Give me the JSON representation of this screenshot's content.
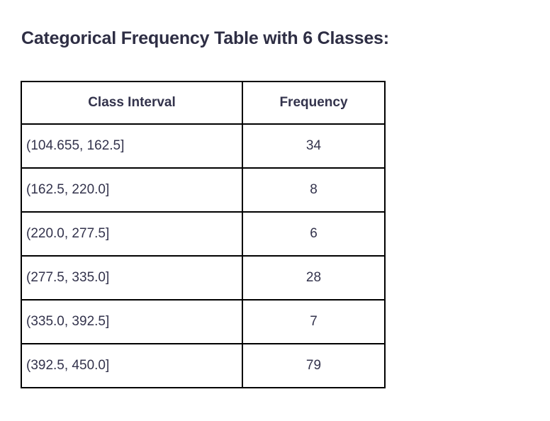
{
  "page": {
    "title": "Categorical Frequency Table with 6 Classes:"
  },
  "table": {
    "columns": [
      "Class Interval",
      "Frequency"
    ],
    "rows": [
      {
        "interval": "(104.655, 162.5]",
        "frequency": "34"
      },
      {
        "interval": "(162.5, 220.0]",
        "frequency": "8"
      },
      {
        "interval": "(220.0, 277.5]",
        "frequency": "6"
      },
      {
        "interval": "(277.5, 335.0]",
        "frequency": "28"
      },
      {
        "interval": "(335.0, 392.5]",
        "frequency": "7"
      },
      {
        "interval": "(392.5, 450.0]",
        "frequency": "79"
      }
    ]
  },
  "chart_data": {
    "type": "table",
    "title": "Categorical Frequency Table with 6 Classes:",
    "columns": [
      "Class Interval",
      "Frequency"
    ],
    "class_intervals": [
      "(104.655, 162.5]",
      "(162.5, 220.0]",
      "(220.0, 277.5]",
      "(277.5, 335.0]",
      "(335.0, 392.5]",
      "(392.5, 450.0]"
    ],
    "frequencies": [
      34,
      8,
      6,
      28,
      7,
      79
    ],
    "num_classes": 6
  },
  "colors": {
    "background": "#ffffff",
    "text": "#33334c",
    "title_text": "#2e2e44",
    "table_border": "#000000"
  }
}
